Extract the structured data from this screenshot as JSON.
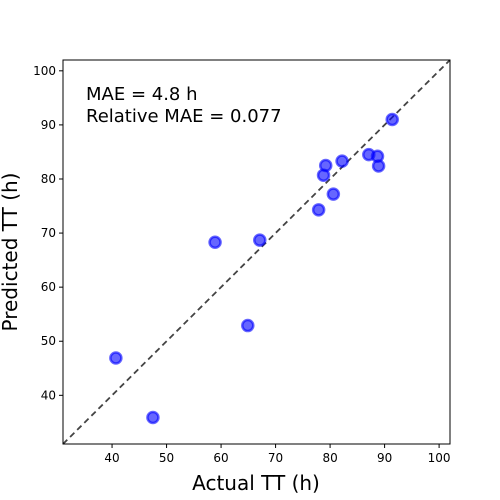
{
  "chart_data": {
    "type": "scatter",
    "title": "",
    "xlabel": "Actual TT (h)",
    "ylabel": "Predicted TT (h)",
    "xlim": [
      31,
      102
    ],
    "ylim": [
      31,
      102
    ],
    "xticks": [
      40,
      50,
      60,
      70,
      80,
      90,
      100
    ],
    "yticks": [
      40,
      50,
      60,
      70,
      80,
      90,
      100
    ],
    "grid": false,
    "identity_line": true,
    "annotations": [
      "MAE = 4.8 h",
      "Relative MAE = 0.077"
    ],
    "colors": {
      "points": "#0000ff",
      "identity_line": "#444444",
      "axes": "#000000"
    },
    "points": [
      {
        "x": 40.7,
        "y": 46.9
      },
      {
        "x": 47.5,
        "y": 35.9
      },
      {
        "x": 58.9,
        "y": 68.3
      },
      {
        "x": 64.9,
        "y": 52.9
      },
      {
        "x": 67.1,
        "y": 68.7
      },
      {
        "x": 77.9,
        "y": 74.3
      },
      {
        "x": 78.8,
        "y": 80.7
      },
      {
        "x": 79.2,
        "y": 82.5
      },
      {
        "x": 80.6,
        "y": 77.2
      },
      {
        "x": 82.2,
        "y": 83.3
      },
      {
        "x": 87.1,
        "y": 84.5
      },
      {
        "x": 88.7,
        "y": 84.2
      },
      {
        "x": 88.9,
        "y": 82.4
      },
      {
        "x": 91.4,
        "y": 91.0
      }
    ]
  }
}
